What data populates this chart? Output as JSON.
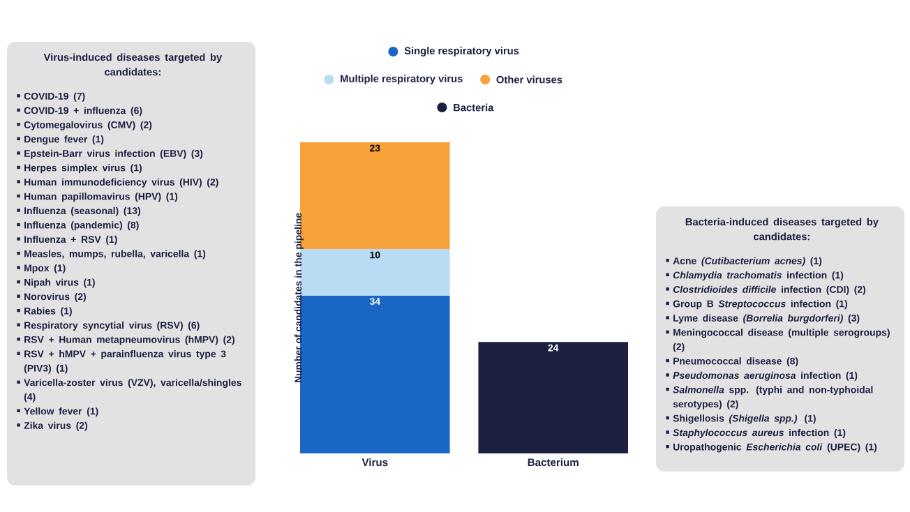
{
  "chart_data": [
    {
      "type": "other",
      "title": "Virus-induced diseases targeted by candidates:",
      "annotations": [
        "COVID-19 (7)",
        "COVID-19 + influenza (6)",
        "Cytomegalovirus (CMV) (2)",
        "Dengue fever (1)",
        "Epstein-Barr virus infection (EBV) (3)",
        "Herpes simplex virus (1)",
        "Human immunodeficiency virus (HIV) (2)",
        "Human papillomavirus (HPV) (1)",
        "Influenza (seasonal) (13)",
        "Influenza (pandemic) (8)",
        "Influenza + RSV (1)",
        "Measles, mumps, rubella, varicella (1)",
        "Mpox (1)",
        "Nipah virus (1)",
        "Norovirus (2)",
        "Rabies (1)",
        "Respiratory syncytial virus (RSV) (6)",
        "RSV + Human metapneumovirus (hMPV) (2)",
        "RSV + hMPV + parainfluenza virus type 3 (PIV3) (1)",
        "Varicella-zoster virus (VZV), varicella/shingles (4)",
        "Yellow fever (1)",
        "Zika virus (2)"
      ]
    },
    {
      "type": "bar",
      "stacked": true,
      "categories": [
        "Virus",
        "Bacterium"
      ],
      "ylabel": "Number of candidates in the pipeline",
      "data_labels": true,
      "legend": "top",
      "series": [
        {
          "name": "Single respiratory virus",
          "color": "#1a66c4",
          "values": [
            34,
            null
          ]
        },
        {
          "name": "Multiple respiratory virus",
          "color": "#b9dcf4",
          "values": [
            10,
            null
          ]
        },
        {
          "name": "Other viruses",
          "color": "#f8a23c",
          "values": [
            23,
            null
          ]
        },
        {
          "name": "Bacteria",
          "color": "#1c2040",
          "values": [
            null,
            24
          ]
        }
      ]
    },
    {
      "type": "other",
      "title": "Bacteria-induced diseases targeted by candidates:",
      "annotations": [
        "Acne *(Cutibacterium acnes)* (1)",
        "*Chlamydia trachomatis* infection (1)",
        "*Clostridioides difficile* infection (CDI) (2)",
        "Group B *Streptococcus* infection (1)",
        "Lyme disease *(Borrelia burgdorferi)* (3)",
        "Meningococcal disease (multiple serogroups) (2)",
        "Pneumococcal disease (8)",
        "*Pseudomonas aeruginosa* infection (1)",
        "*Salmonella* spp. (typhi and non-typhoidal serotypes) (2)",
        "Shigellosis *(Shigella spp.)* (1)",
        "*Staphylococcus aureus* infection (1)",
        "Uropathogenic *Escherichia coli* (UPEC) (1)"
      ]
    }
  ]
}
